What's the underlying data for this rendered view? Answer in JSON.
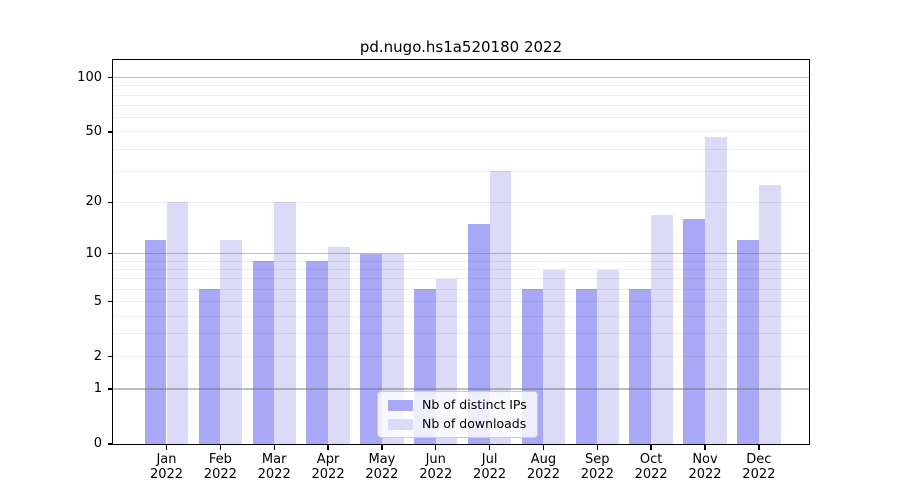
{
  "chart_data": {
    "type": "bar",
    "title": "pd.nugo.hs1a520180 2022",
    "categories": [
      "Jan",
      "Feb",
      "Mar",
      "Apr",
      "May",
      "Jun",
      "Jul",
      "Aug",
      "Sep",
      "Oct",
      "Nov",
      "Dec"
    ],
    "category_year": "2022",
    "series": [
      {
        "name": "Nb of distinct IPs",
        "color": "#a8a8f6",
        "values": [
          12,
          6,
          9,
          9,
          10,
          6,
          15,
          6,
          6,
          6,
          16,
          12
        ]
      },
      {
        "name": "Nb of downloads",
        "color": "#dbdbf8",
        "values": [
          20,
          12,
          20,
          11,
          10,
          7,
          30,
          8,
          8,
          17,
          47,
          25
        ]
      }
    ],
    "yscale": "log1p",
    "ylim": [
      0,
      125
    ],
    "yticks": [
      0,
      1,
      2,
      5,
      10,
      20,
      50,
      100
    ],
    "grid_major": [
      1,
      10,
      100
    ],
    "grid_minor": [
      2,
      3,
      4,
      5,
      6,
      7,
      8,
      9,
      20,
      30,
      40,
      50,
      60,
      70,
      80,
      90
    ],
    "legend_position": "lower center",
    "colors": {
      "grid_major": "rgba(110,110,110,0.45)",
      "grid_minor": "rgba(0,0,0,0.07)",
      "spine": "#000000",
      "text": "#000000",
      "legend_border": "#cccccc",
      "legend_bg": "rgba(255,255,255,0.8)"
    }
  }
}
